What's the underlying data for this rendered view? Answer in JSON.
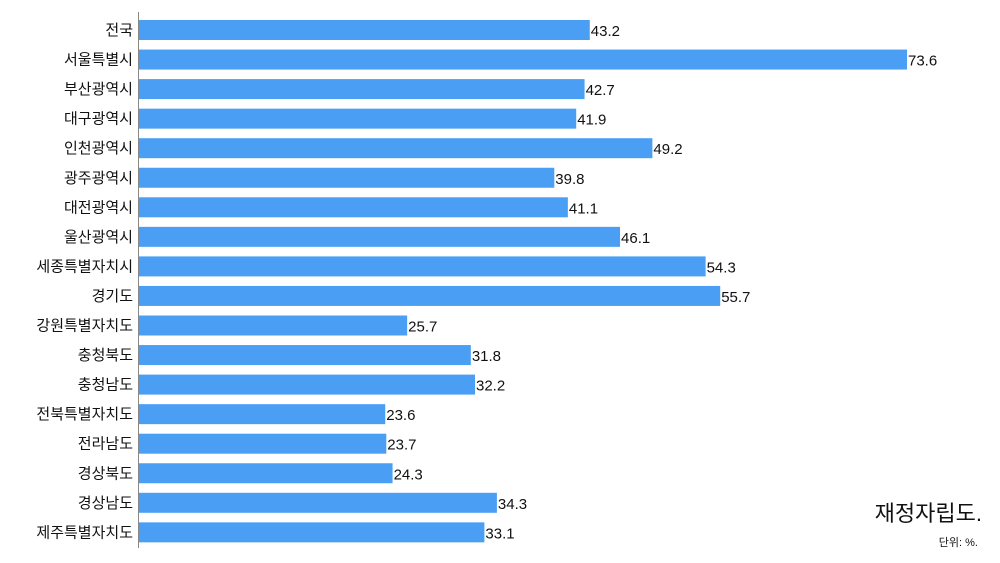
{
  "chart_data": {
    "type": "bar",
    "orientation": "horizontal",
    "title": "재정자립도.",
    "unit_note": "단위: %.",
    "categories": [
      "전국",
      "서울특별시",
      "부산광역시",
      "대구광역시",
      "인천광역시",
      "광주광역시",
      "대전광역시",
      "울산광역시",
      "세종특별자치시",
      "경기도",
      "강원특별자치도",
      "충청북도",
      "충청남도",
      "전북특별자치도",
      "전라남도",
      "경상북도",
      "경상남도",
      "제주특별자치도"
    ],
    "values": [
      43.2,
      73.6,
      42.7,
      41.9,
      49.2,
      39.8,
      41.1,
      46.1,
      54.3,
      55.7,
      25.7,
      31.8,
      32.2,
      23.6,
      23.7,
      24.3,
      34.3,
      33.1
    ],
    "xlim": [
      0,
      73.6
    ],
    "grid": false,
    "bar_color": "#4a9ff5"
  }
}
